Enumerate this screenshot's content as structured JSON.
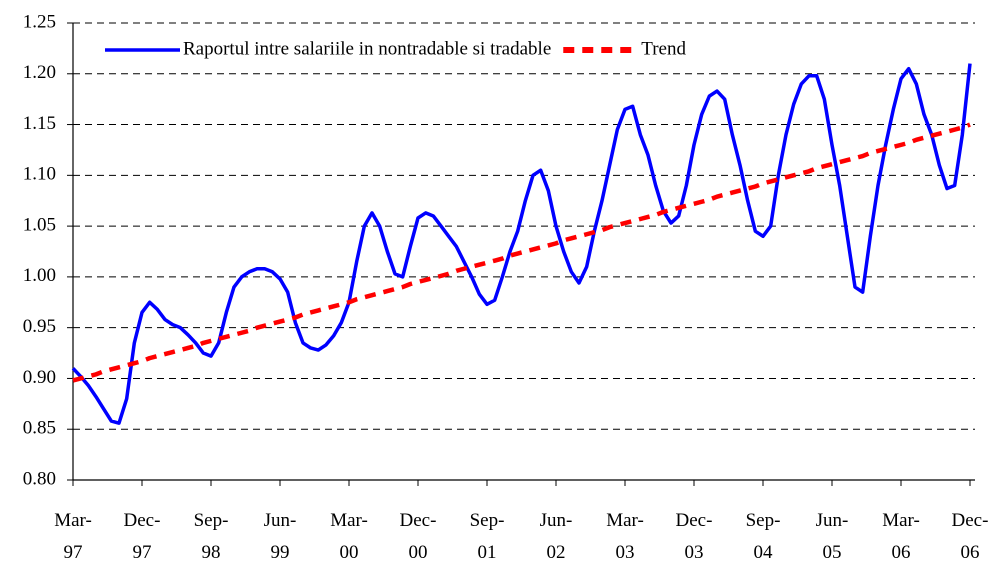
{
  "chart_data": {
    "type": "line",
    "categories": [
      "Mar-97",
      null,
      null,
      null,
      null,
      null,
      null,
      null,
      null,
      "Dec-97",
      null,
      null,
      null,
      null,
      null,
      null,
      null,
      null,
      "Sep-98",
      null,
      null,
      null,
      null,
      null,
      null,
      null,
      null,
      "Jun-99",
      null,
      null,
      null,
      null,
      null,
      null,
      null,
      null,
      "Mar-00",
      null,
      null,
      null,
      null,
      null,
      null,
      null,
      null,
      "Dec-00",
      null,
      null,
      null,
      null,
      null,
      null,
      null,
      null,
      "Sep-01",
      null,
      null,
      null,
      null,
      null,
      null,
      null,
      null,
      "Jun-02",
      null,
      null,
      null,
      null,
      null,
      null,
      null,
      null,
      "Mar-03",
      null,
      null,
      null,
      null,
      null,
      null,
      null,
      null,
      "Dec-03",
      null,
      null,
      null,
      null,
      null,
      null,
      null,
      null,
      "Sep-04",
      null,
      null,
      null,
      null,
      null,
      null,
      null,
      null,
      "Jun-05",
      null,
      null,
      null,
      null,
      null,
      null,
      null,
      null,
      "Mar-06",
      null,
      null,
      null,
      null,
      null,
      null,
      null,
      null,
      "Dec-06"
    ],
    "series": [
      {
        "name": "Raportul intre salariile in nontradable si tradable",
        "color": "#0000ff",
        "style": "solid",
        "values": [
          0.91,
          0.902,
          0.893,
          0.882,
          0.87,
          0.858,
          0.856,
          0.88,
          0.935,
          0.965,
          0.975,
          0.968,
          0.958,
          0.953,
          0.95,
          0.943,
          0.935,
          0.925,
          0.922,
          0.935,
          0.965,
          0.99,
          1.0,
          1.005,
          1.008,
          1.008,
          1.005,
          0.998,
          0.985,
          0.955,
          0.935,
          0.93,
          0.928,
          0.933,
          0.942,
          0.955,
          0.975,
          1.015,
          1.05,
          1.063,
          1.05,
          1.025,
          1.003,
          1.0,
          1.03,
          1.058,
          1.063,
          1.06,
          1.05,
          1.04,
          1.03,
          1.015,
          1.0,
          0.983,
          0.973,
          0.977,
          1.0,
          1.025,
          1.045,
          1.075,
          1.1,
          1.105,
          1.085,
          1.05,
          1.025,
          1.005,
          0.994,
          1.01,
          1.045,
          1.075,
          1.11,
          1.145,
          1.165,
          1.168,
          1.14,
          1.12,
          1.09,
          1.065,
          1.053,
          1.06,
          1.09,
          1.13,
          1.16,
          1.178,
          1.183,
          1.175,
          1.14,
          1.11,
          1.075,
          1.045,
          1.04,
          1.05,
          1.1,
          1.14,
          1.17,
          1.19,
          1.198,
          1.198,
          1.175,
          1.13,
          1.09,
          1.04,
          0.99,
          0.985,
          1.04,
          1.09,
          1.13,
          1.165,
          1.195,
          1.205,
          1.19,
          1.16,
          1.14,
          1.11,
          1.087,
          1.09,
          1.14,
          1.21
        ]
      },
      {
        "name": "Trend",
        "color": "#ff0000",
        "style": "dashed",
        "values": [
          0.898,
          0.9,
          0.902,
          0.904,
          0.907,
          0.909,
          0.911,
          0.913,
          0.915,
          0.917,
          0.92,
          0.922,
          0.924,
          0.926,
          0.928,
          0.93,
          0.932,
          0.935,
          0.937,
          0.939,
          0.941,
          0.943,
          0.945,
          0.947,
          0.95,
          0.952,
          0.954,
          0.956,
          0.958,
          0.96,
          0.963,
          0.965,
          0.967,
          0.969,
          0.971,
          0.973,
          0.975,
          0.978,
          0.98,
          0.982,
          0.984,
          0.986,
          0.988,
          0.99,
          0.993,
          0.995,
          0.997,
          0.999,
          1.001,
          1.003,
          1.006,
          1.008,
          1.01,
          1.012,
          1.014,
          1.016,
          1.018,
          1.021,
          1.023,
          1.025,
          1.027,
          1.029,
          1.031,
          1.033,
          1.036,
          1.038,
          1.04,
          1.042,
          1.044,
          1.046,
          1.049,
          1.051,
          1.053,
          1.055,
          1.057,
          1.059,
          1.061,
          1.064,
          1.066,
          1.068,
          1.07,
          1.072,
          1.074,
          1.076,
          1.079,
          1.081,
          1.083,
          1.085,
          1.087,
          1.089,
          1.092,
          1.094,
          1.096,
          1.098,
          1.1,
          1.102,
          1.104,
          1.107,
          1.109,
          1.111,
          1.113,
          1.115,
          1.117,
          1.119,
          1.122,
          1.124,
          1.126,
          1.128,
          1.13,
          1.132,
          1.135,
          1.137,
          1.139,
          1.141,
          1.143,
          1.145,
          1.147,
          1.15
        ]
      }
    ],
    "ylim": [
      0.8,
      1.25
    ],
    "yticks": [
      {
        "value": 0.8,
        "label": "0.80"
      },
      0.85,
      {
        "value": 0.9,
        "label": "0.90"
      },
      0.95,
      {
        "value": 1.0,
        "label": "1.00"
      },
      1.05,
      {
        "value": 1.1,
        "label": "1.10"
      },
      1.15,
      {
        "value": 1.2,
        "label": "1.20"
      },
      1.25
    ],
    "grid": true,
    "legend": "top"
  }
}
